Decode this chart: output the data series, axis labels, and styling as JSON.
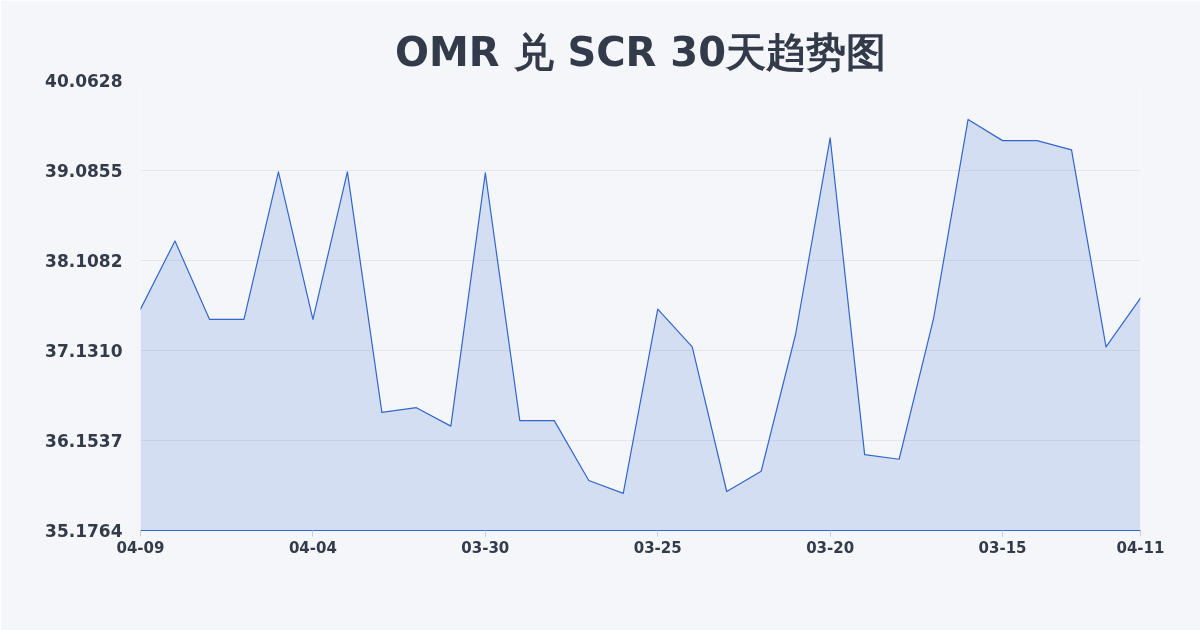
{
  "chart_data": {
    "type": "area",
    "title": "OMR 兑 SCR 30天趋势图",
    "categories": [
      "04-09",
      null,
      null,
      null,
      null,
      "04-04",
      null,
      null,
      null,
      null,
      "03-30",
      null,
      null,
      null,
      null,
      "03-25",
      null,
      null,
      null,
      null,
      "03-20",
      null,
      null,
      null,
      null,
      "03-15",
      null,
      null,
      null,
      "04-11"
    ],
    "series": [
      {
        "color": "#3366cc",
        "values": [
          37.58,
          38.32,
          37.47,
          37.47,
          39.07,
          37.47,
          39.07,
          36.46,
          36.51,
          36.31,
          39.06,
          36.37,
          36.37,
          35.72,
          35.58,
          37.58,
          37.17,
          35.6,
          35.82,
          37.31,
          39.44,
          36.0,
          35.95,
          37.48,
          39.64,
          39.41,
          39.41,
          39.31,
          37.17,
          37.7
        ]
      }
    ],
    "ylim": [
      35.1764,
      40.0628
    ],
    "yticks": [
      35.1764,
      36.1537,
      {
        "value": 37.131,
        "label": "37.1310"
      },
      38.1082,
      39.0855,
      40.0628
    ],
    "grid": "y"
  }
}
